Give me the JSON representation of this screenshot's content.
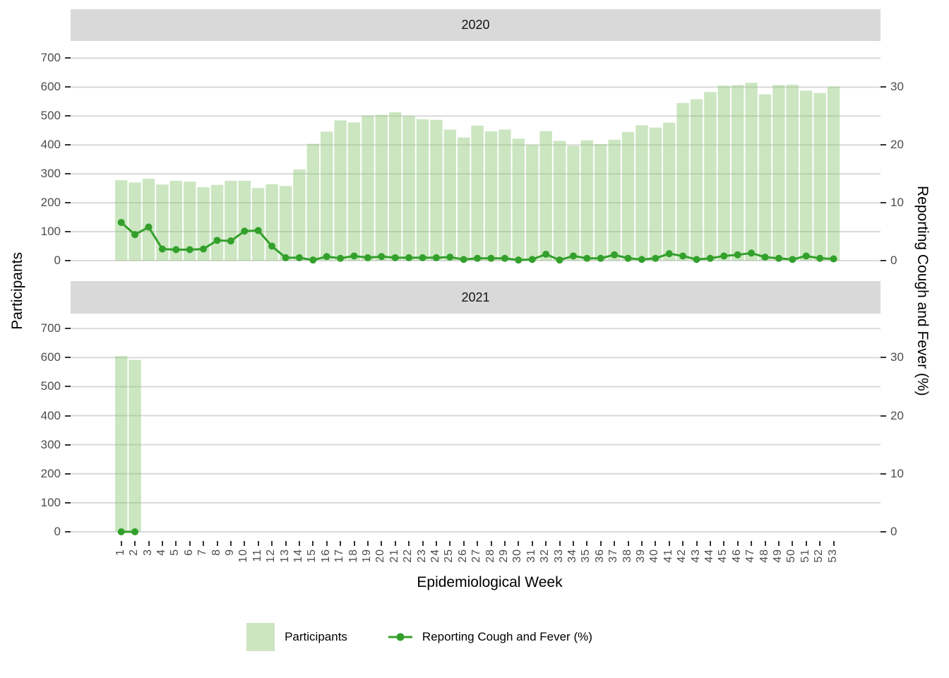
{
  "facets": [
    {
      "label": "2020"
    },
    {
      "label": "2021"
    }
  ],
  "axes": {
    "x": {
      "title": "Epidemiological Week",
      "ticks": [
        1,
        2,
        3,
        4,
        5,
        6,
        7,
        8,
        9,
        10,
        11,
        12,
        13,
        14,
        15,
        16,
        17,
        18,
        19,
        20,
        21,
        22,
        23,
        24,
        25,
        26,
        27,
        28,
        29,
        30,
        31,
        32,
        33,
        34,
        35,
        36,
        37,
        38,
        39,
        40,
        41,
        42,
        43,
        44,
        45,
        46,
        47,
        48,
        49,
        50,
        51,
        52,
        53
      ]
    },
    "y_left": {
      "title": "Participants",
      "ticks": [
        0,
        100,
        200,
        300,
        400,
        500,
        600,
        700
      ]
    },
    "y_right": {
      "title": "Reporting Cough and Fever (%)",
      "ticks": [
        0,
        10,
        20,
        30
      ]
    }
  },
  "legend": {
    "items": [
      {
        "label": "Participants",
        "type": "fill"
      },
      {
        "label": "Reporting Cough and Fever (%)",
        "type": "line"
      }
    ]
  },
  "colors": {
    "bar_fill": "rgba(139,199,116,0.45)",
    "bar_fill_solid": "#cde5c1",
    "line": "#33a02c",
    "strip_bg": "#d9d9d9",
    "grid": "#d9d9d9",
    "tick_mark": "#333333",
    "tick_label": "#4d4d4d"
  },
  "chart_data": [
    {
      "type": "bar",
      "facet": "2020",
      "title": "2020",
      "xlabel": "Epidemiological Week",
      "ylabel_left": "Participants",
      "ylabel_right": "Reporting Cough and Fever (%)",
      "y_left_range": [
        0,
        700
      ],
      "y_right_range": [
        0,
        35
      ],
      "grid": "horizontal-major",
      "legend_position": "bottom",
      "x": [
        1,
        2,
        3,
        4,
        5,
        6,
        7,
        8,
        9,
        10,
        11,
        12,
        13,
        14,
        15,
        16,
        17,
        18,
        19,
        20,
        21,
        22,
        23,
        24,
        25,
        26,
        27,
        28,
        29,
        30,
        31,
        32,
        33,
        34,
        35,
        36,
        37,
        38,
        39,
        40,
        41,
        42,
        43,
        44,
        45,
        46,
        47,
        48,
        49,
        50,
        51,
        52,
        53
      ],
      "series": [
        {
          "name": "Participants",
          "type": "bar",
          "axis": "left",
          "values": [
            278,
            270,
            283,
            263,
            276,
            273,
            254,
            262,
            276,
            276,
            251,
            264,
            258,
            315,
            404,
            446,
            485,
            478,
            501,
            504,
            513,
            500,
            489,
            487,
            453,
            426,
            467,
            447,
            453,
            422,
            400,
            448,
            414,
            397,
            416,
            403,
            418,
            445,
            468,
            460,
            477,
            545,
            558,
            583,
            605,
            607,
            615,
            575,
            607,
            608,
            588,
            580,
            602
          ]
        },
        {
          "name": "Reporting Cough and Fever (%)",
          "type": "line",
          "axis": "right",
          "values": [
            6.6,
            4.5,
            5.8,
            2.0,
            1.9,
            1.9,
            2.0,
            3.5,
            3.4,
            5.1,
            5.2,
            2.5,
            0.5,
            0.5,
            0.1,
            0.7,
            0.4,
            0.8,
            0.5,
            0.7,
            0.5,
            0.5,
            0.5,
            0.5,
            0.6,
            0.2,
            0.4,
            0.4,
            0.4,
            0.1,
            0.2,
            1.1,
            0.1,
            0.8,
            0.4,
            0.4,
            1.0,
            0.4,
            0.2,
            0.4,
            1.2,
            0.8,
            0.2,
            0.4,
            0.8,
            1.0,
            1.3,
            0.6,
            0.4,
            0.2,
            0.8,
            0.4,
            0.3
          ]
        }
      ]
    },
    {
      "type": "bar",
      "facet": "2021",
      "title": "2021",
      "xlabel": "Epidemiological Week",
      "ylabel_left": "Participants",
      "ylabel_right": "Reporting Cough and Fever (%)",
      "y_left_range": [
        0,
        700
      ],
      "y_right_range": [
        0,
        35
      ],
      "grid": "horizontal-major",
      "x": [
        1,
        2
      ],
      "series": [
        {
          "name": "Participants",
          "type": "bar",
          "axis": "left",
          "values": [
            605,
            592
          ]
        },
        {
          "name": "Reporting Cough and Fever (%)",
          "type": "line",
          "axis": "right",
          "values": [
            0,
            0
          ]
        }
      ]
    }
  ]
}
